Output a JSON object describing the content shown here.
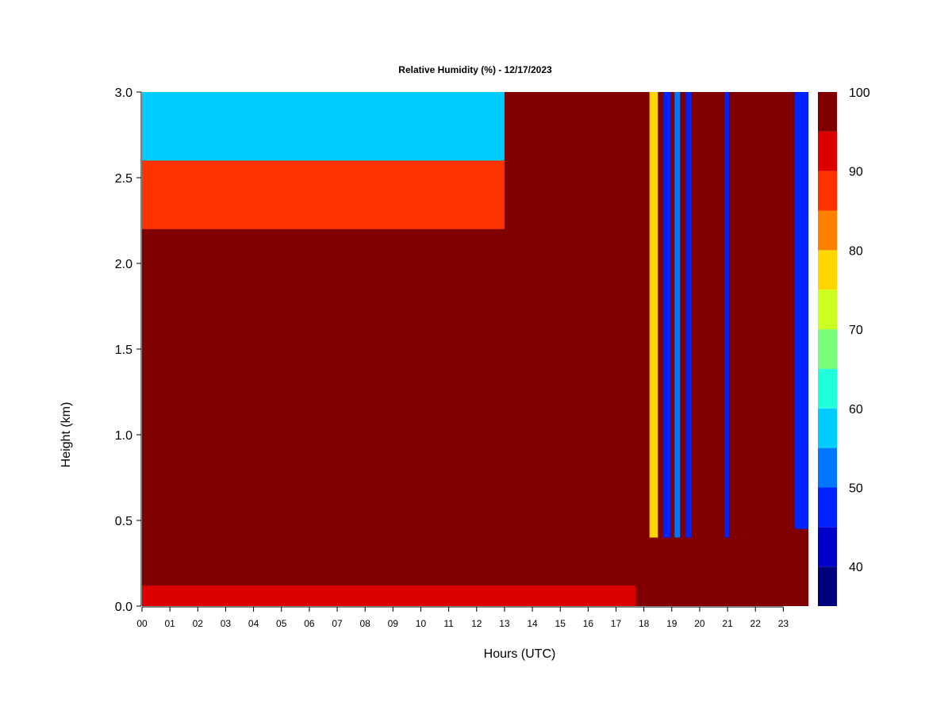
{
  "chart_data": {
    "type": "heatmap",
    "title": "Relative Humidity (%) - 12/17/2023",
    "xlabel": "Hours (UTC)",
    "ylabel": "Height (km)",
    "xlim": [
      0,
      23.9
    ],
    "ylim": [
      0.0,
      3.0
    ],
    "x_ticks": [
      "00",
      "01",
      "02",
      "03",
      "04",
      "05",
      "06",
      "07",
      "08",
      "09",
      "10",
      "11",
      "12",
      "13",
      "14",
      "15",
      "16",
      "17",
      "18",
      "19",
      "20",
      "21",
      "22",
      "23"
    ],
    "y_ticks": [
      "0.0",
      "0.5",
      "1.0",
      "1.5",
      "2.0",
      "2.5",
      "3.0"
    ],
    "colorbar": {
      "label_values": [
        "40",
        "50",
        "60",
        "70",
        "80",
        "90",
        "100"
      ],
      "min": 35,
      "max": 100,
      "step": 5,
      "colors": [
        "#00007F",
        "#0000CC",
        "#0022FF",
        "#0077FF",
        "#00CCFF",
        "#22FFDD",
        "#77FF77",
        "#CCFF22",
        "#FFD700",
        "#FF7F00",
        "#FF3300",
        "#DD0000",
        "#800000"
      ]
    },
    "regions": [
      {
        "x0": 0,
        "x1": 17.7,
        "y0": 0.0,
        "y1": 0.12,
        "rh": 92
      },
      {
        "x0": 0,
        "x1": 17.7,
        "y0": 0.12,
        "y1": 1.1,
        "rh": 97
      },
      {
        "x0": 0,
        "x1": 13,
        "y0": 2.2,
        "y1": 2.6,
        "rh": 85
      },
      {
        "x0": 0,
        "x1": 13,
        "y0": 2.6,
        "y1": 3.0,
        "rh": 58
      },
      {
        "x0": 18.2,
        "x1": 18.5,
        "y0": 0.4,
        "y1": 3.0,
        "rh": 75
      },
      {
        "x0": 18.7,
        "x1": 18.95,
        "y0": 0.4,
        "y1": 3.0,
        "rh": 45
      },
      {
        "x0": 19.1,
        "x1": 19.3,
        "y0": 0.4,
        "y1": 3.0,
        "rh": 50
      },
      {
        "x0": 19.5,
        "x1": 19.7,
        "y0": 0.4,
        "y1": 3.0,
        "rh": 48
      },
      {
        "x0": 20.9,
        "x1": 21.05,
        "y0": 0.4,
        "y1": 3.0,
        "rh": 45
      },
      {
        "x0": 23.4,
        "x1": 23.9,
        "y0": 0.45,
        "y1": 3.0,
        "rh": 48
      }
    ]
  }
}
